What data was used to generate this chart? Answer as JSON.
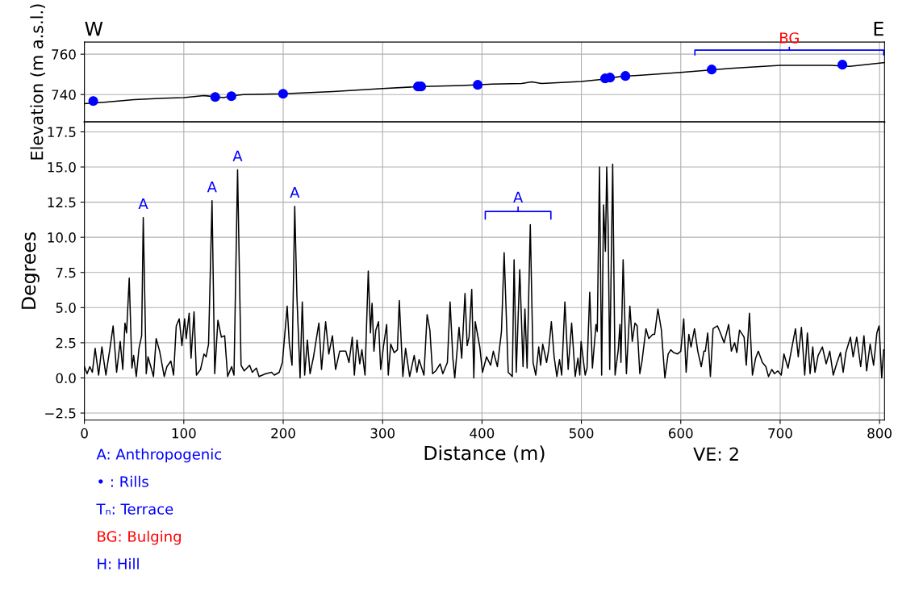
{
  "chart_data": [
    {
      "type": "line",
      "ylabel": "Elevation (m a.s.l.)",
      "xlim": [
        0,
        805
      ],
      "xticks": [
        0,
        100,
        200,
        300,
        400,
        500,
        600,
        700,
        800
      ],
      "ylim": [
        726.4,
        766
      ],
      "yticks": [
        740,
        760
      ],
      "grid": true,
      "tick_labels": "y",
      "series": [
        {
          "type": "line",
          "color": "#000000",
          "x": [
            0,
            20,
            50,
            80,
            100,
            120,
            140,
            150,
            160,
            200,
            250,
            300,
            340,
            380,
            410,
            440,
            450,
            460,
            500,
            520,
            540,
            560,
            600,
            650,
            700,
            750,
            770,
            805
          ],
          "values": [
            735.5,
            736.2,
            737.5,
            738.2,
            738.5,
            739.5,
            738.5,
            739.5,
            740,
            740.4,
            741.5,
            743,
            744,
            744.5,
            745.2,
            745.5,
            746.3,
            745.5,
            746.5,
            747.5,
            749,
            749.6,
            751,
            753,
            754.5,
            754.5,
            754,
            755.8
          ]
        },
        {
          "type": "scatter",
          "color": "#0000ff",
          "marker": "circle",
          "x": [
            8.9,
            131.6,
            147.9,
            199.9,
            335.6,
            338.8,
            395.7,
            523.9,
            528.8,
            544.3,
            631.1,
            762.6
          ],
          "values": [
            736.8,
            738.8,
            739.2,
            740.4,
            744.0,
            744.0,
            744.8,
            748.0,
            748.4,
            749.2,
            752.4,
            754.8
          ]
        }
      ],
      "annotations": [
        "W",
        "E",
        "BG"
      ]
    },
    {
      "type": "line",
      "xlabel": "Distance (m)",
      "ylabel": "Degrees",
      "xlim": [
        0,
        805
      ],
      "xticks": [
        0,
        100,
        200,
        300,
        400,
        500,
        600,
        700,
        800
      ],
      "ylim": [
        -3.0,
        18.2
      ],
      "yticks": [
        {
          "value": -2.5,
          "label": "−2.5"
        },
        {
          "value": 0,
          "label": "0.0"
        },
        {
          "value": 2.5,
          "label": "2.5"
        },
        {
          "value": 5,
          "label": "5.0"
        },
        {
          "value": 7.5,
          "label": "7.5"
        },
        {
          "value": 10,
          "label": "10.0"
        },
        {
          "value": 12.5,
          "label": "12.5"
        },
        {
          "value": 15,
          "label": "15.0"
        },
        {
          "value": 17.5,
          "label": "17.5"
        }
      ],
      "grid": true,
      "color": "#000000",
      "x": [
        0,
        2.7,
        5.4,
        8,
        10.8,
        14.3,
        17.6,
        21.6,
        25.7,
        28.9,
        32.4,
        36,
        38.6,
        40.8,
        42.4,
        45.1,
        47.8,
        49.5,
        52.2,
        54.9,
        57.6,
        59.2,
        62.2,
        64,
        66.8,
        69.5,
        72.2,
        75.7,
        80.3,
        83,
        87,
        89.7,
        92.4,
        95.4,
        98.1,
        100.8,
        102.4,
        105.4,
        107.3,
        110.3,
        112.7,
        116.8,
        120.3,
        122.4,
        124.9,
        128.4,
        131.1,
        134.3,
        137.8,
        141.1,
        144.1,
        148.1,
        150.5,
        154.1,
        157.6,
        160.8,
        166.2,
        168.9,
        173,
        175.7,
        182.4,
        188.4,
        191.1,
        196,
        199.2,
        204,
        206.2,
        208.9,
        211.6,
        213.8,
        217,
        219.2,
        221.6,
        224.3,
        227,
        230.5,
        235.9,
        238.6,
        242.7,
        245.9,
        249.5,
        252.7,
        256.8,
        263,
        266.2,
        269.5,
        271.6,
        274.3,
        277,
        279.2,
        282.3,
        285.6,
        287.8,
        289.4,
        291.3,
        293.2,
        295.9,
        298.1,
        300.8,
        304.1,
        305.7,
        308.2,
        311.7,
        314.9,
        316.8,
        320.4,
        323.1,
        327.2,
        331.8,
        334.5,
        336.7,
        341.6,
        344.8,
        347.6,
        350.3,
        353.5,
        357.9,
        360.6,
        365.2,
        367.9,
        370.7,
        372.6,
        376.9,
        379.6,
        382.9,
        385.1,
        387,
        389.7,
        391.8,
        393.2,
        397.8,
        400.5,
        404.6,
        408.7,
        411.4,
        415.5,
        419.6,
        422.3,
        426.4,
        430.5,
        432.3,
        434.5,
        438,
        441.3,
        443.2,
        445.4,
        448.6,
        451.4,
        454.1,
        457.1,
        459,
        461.1,
        463,
        465,
        467.1,
        469.8,
        472.6,
        475.3,
        478,
        480.2,
        483.4,
        486.7,
        490.2,
        493.8,
        496.5,
        498.4,
        499.7,
        503.8,
        505.7,
        508.4,
        511.1,
        514.7,
        516,
        518.2,
        520.4,
        522.3,
        524.2,
        525.5,
        526.9,
        528.5,
        531.5,
        533.9,
        537.1,
        538.8,
        539.8,
        542,
        545.3,
        548.8,
        551.2,
        553.9,
        556.1,
        558.8,
        561,
        565,
        567.8,
        571.8,
        573.7,
        577,
        580.5,
        584,
        587.3,
        590,
        592.7,
        596.7,
        600,
        603,
        605.4,
        608.1,
        610.3,
        613.8,
        617.1,
        620.6,
        623.3,
        624.7,
        627.1,
        629.8,
        632.5,
        636.9,
        639.3,
        643.6,
        648.2,
        650.9,
        654.2,
        656.4,
        659.1,
        663.7,
        665.9,
        669.1,
        672.1,
        675.3,
        678,
        682.1,
        685.6,
        688.3,
        691.6,
        694.3,
        697.6,
        701.1,
        703.8,
        707.9,
        711.9,
        715.4,
        718.2,
        721.4,
        724.7,
        727.4,
        730.1,
        732.8,
        735,
        738.2,
        742.5,
        746.3,
        749.9,
        753.4,
        757.2,
        760.7,
        763.4,
        766.1,
        770.7,
        773.4,
        777,
        781,
        784.3,
        787,
        790.5,
        794,
        797.3,
        799.5,
        802.2,
        804.1
      ],
      "values": [
        0.8,
        0.3,
        0.8,
        0.4,
        2.1,
        0.2,
        2.2,
        0.2,
        2.1,
        3.7,
        0.4,
        2.6,
        0.6,
        3.9,
        3.2,
        7.1,
        0.7,
        1.6,
        0.1,
        2.1,
        3.0,
        11.4,
        0.3,
        1.5,
        0.8,
        0.1,
        2.8,
        1.9,
        0.1,
        0.8,
        1.2,
        0.2,
        3.7,
        4.2,
        2.3,
        4.2,
        2.8,
        4.6,
        1.4,
        4.7,
        0.2,
        0.6,
        1.7,
        1.5,
        2.4,
        12.6,
        0.3,
        4.1,
        2.9,
        3.0,
        0.1,
        0.8,
        0.2,
        14.8,
        0.9,
        0.5,
        0.9,
        0.4,
        0.7,
        0.1,
        0.3,
        0.4,
        0.2,
        0.4,
        1.1,
        5.1,
        2.4,
        0.9,
        12.2,
        5.8,
        0.0,
        5.4,
        0.2,
        2.7,
        0.3,
        1.5,
        3.9,
        0.6,
        4.0,
        1.7,
        3.0,
        0.6,
        1.9,
        1.9,
        1.1,
        2.9,
        0.2,
        2.7,
        1.0,
        2.0,
        0.2,
        7.6,
        3.2,
        5.3,
        1.9,
        3.4,
        4.0,
        0.6,
        2.2,
        3.8,
        0.2,
        2.4,
        1.8,
        2.0,
        5.5,
        0.1,
        2.1,
        0.1,
        1.6,
        0.4,
        1.3,
        0.2,
        4.5,
        3.4,
        0.3,
        0.5,
        1.0,
        0.3,
        1.1,
        5.4,
        1.4,
        0.0,
        3.6,
        1.4,
        6.0,
        2.3,
        2.9,
        6.3,
        0.0,
        4.0,
        2.2,
        0.4,
        1.5,
        0.9,
        1.9,
        0.8,
        3.3,
        8.9,
        0.4,
        0.1,
        8.4,
        0.4,
        7.7,
        0.8,
        4.9,
        0.7,
        10.9,
        1.1,
        0.2,
        2.2,
        0.9,
        2.4,
        1.8,
        1.1,
        2.0,
        4.0,
        1.5,
        0.1,
        1.3,
        0.2,
        5.4,
        0.6,
        3.9,
        0.1,
        1.4,
        0.2,
        2.6,
        0.2,
        0.7,
        6.1,
        0.7,
        3.8,
        3.3,
        15.0,
        0.2,
        12.3,
        9.0,
        15.0,
        10.9,
        0.6,
        15.2,
        0.2,
        2.0,
        3.8,
        1.1,
        8.4,
        0.3,
        5.1,
        2.6,
        3.9,
        3.7,
        0.3,
        1.2,
        3.5,
        2.8,
        3.1,
        3.1,
        4.9,
        3.4,
        0.0,
        1.7,
        2.0,
        1.8,
        1.7,
        1.9,
        4.2,
        0.4,
        3.1,
        2.2,
        3.5,
        1.9,
        0.8,
        1.9,
        1.9,
        3.2,
        0.1,
        3.5,
        3.7,
        3.3,
        2.5,
        3.8,
        1.9,
        2.5,
        1.8,
        3.4,
        2.9,
        0.9,
        4.6,
        0.2,
        1.4,
        1.9,
        1.1,
        0.8,
        0.1,
        0.6,
        0.3,
        0.5,
        0.2,
        1.7,
        0.7,
        2.2,
        3.5,
        1.5,
        3.6,
        0.2,
        3.2,
        0.3,
        2.2,
        0.4,
        1.6,
        2.2,
        1.0,
        1.9,
        0.2,
        1.1,
        1.8,
        0.4,
        1.8,
        2.9,
        1.5,
        2.9,
        0.8,
        3.0,
        0.5,
        2.4,
        0.9,
        3.2,
        3.7,
        0.0,
        2.0
      ],
      "annotations": [
        {
          "text": "A",
          "x": 59.2,
          "y": 11.4
        },
        {
          "text": "A",
          "x": 128.4,
          "y": 12.6
        },
        {
          "text": "A",
          "x": 154.1,
          "y": 14.8
        },
        {
          "text": "A",
          "x": 211.6,
          "y": 12.2
        },
        "A",
        "VE: 2",
        "A: Anthropogenic",
        "• : Rills",
        "Tₙ: Terrace",
        "BG: Bulging",
        "H: Hill"
      ]
    }
  ]
}
